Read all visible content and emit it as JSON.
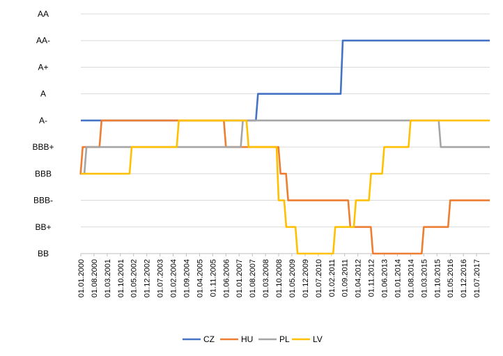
{
  "chart_data": {
    "type": "line",
    "title": "",
    "xlabel": "",
    "ylabel": "",
    "y_categories": [
      "BB",
      "BB+",
      "BBB-",
      "BBB",
      "BBB+",
      "A-",
      "A",
      "A+",
      "AA-",
      "AA"
    ],
    "x_ticks": [
      "01.01.2000",
      "01.08.2000",
      "01.03.2001",
      "01.10.2001",
      "01.05.2002",
      "01.12.2002",
      "01.07.2003",
      "01.02.2004",
      "01.09.2004",
      "01.04.2005",
      "01.11.2005",
      "01.06.2006",
      "01.01.2007",
      "01.08.2007",
      "01.03.2008",
      "01.10.2008",
      "01.05.2009",
      "01.12.2009",
      "01.07.2010",
      "01.02.2011",
      "01.09.2011",
      "01.04.2012",
      "01.11.2012",
      "01.06.2013",
      "01.01.2014",
      "01.08.2014",
      "01.03.2015",
      "01.10.2015",
      "01.05.2016",
      "01.12.2016",
      "01.07.2017"
    ],
    "x_range": [
      "01.01.2000",
      "01.02.2018"
    ],
    "grid": true,
    "legend_position": "bottom",
    "series": [
      {
        "name": "CZ",
        "color": "#4472C4",
        "steps": [
          {
            "from": "01.01.2000",
            "rating": "A-"
          },
          {
            "from": "01.11.2007",
            "rating": "A"
          },
          {
            "from": "01.08.2011",
            "rating": "AA-"
          }
        ]
      },
      {
        "name": "HU",
        "color": "#ED7D31",
        "steps": [
          {
            "from": "01.01.2000",
            "rating": "BBB"
          },
          {
            "from": "01.02.2000",
            "rating": "BBB+"
          },
          {
            "from": "01.12.2000",
            "rating": "A-"
          },
          {
            "from": "01.06.2006",
            "rating": "BBB+"
          },
          {
            "from": "01.11.2008",
            "rating": "BBB"
          },
          {
            "from": "01.03.2009",
            "rating": "BBB-"
          },
          {
            "from": "01.12.2011",
            "rating": "BB+"
          },
          {
            "from": "01.12.2012",
            "rating": "BB"
          },
          {
            "from": "01.03.2015",
            "rating": "BB+"
          },
          {
            "from": "01.05.2016",
            "rating": "BBB-"
          }
        ]
      },
      {
        "name": "PL",
        "color": "#A5A5A5",
        "steps": [
          {
            "from": "01.01.2000",
            "rating": "BBB"
          },
          {
            "from": "01.04.2000",
            "rating": "BBB+"
          },
          {
            "from": "01.03.2007",
            "rating": "A-"
          },
          {
            "from": "01.12.2015",
            "rating": "BBB+"
          }
        ]
      },
      {
        "name": "LV",
        "color": "#FFC000",
        "steps": [
          {
            "from": "01.01.2000",
            "rating": "BBB"
          },
          {
            "from": "01.04.2002",
            "rating": "BBB+"
          },
          {
            "from": "01.05.2004",
            "rating": "A-"
          },
          {
            "from": "01.06.2007",
            "rating": "BBB+"
          },
          {
            "from": "01.10.2008",
            "rating": "BBB-"
          },
          {
            "from": "01.02.2009",
            "rating": "BB+"
          },
          {
            "from": "01.08.2009",
            "rating": "BB"
          },
          {
            "from": "01.04.2011",
            "rating": "BB+"
          },
          {
            "from": "01.03.2012",
            "rating": "BBB-"
          },
          {
            "from": "01.11.2012",
            "rating": "BBB"
          },
          {
            "from": "01.06.2013",
            "rating": "BBB+"
          },
          {
            "from": "01.08.2014",
            "rating": "A-"
          }
        ]
      }
    ]
  }
}
